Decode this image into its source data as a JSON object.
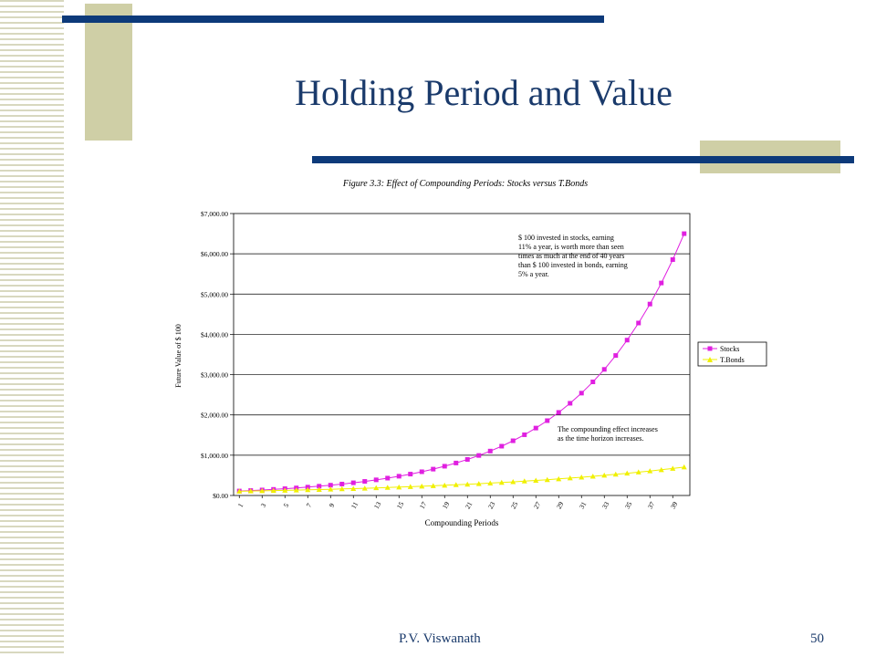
{
  "slide": {
    "title": "Holding Period and Value",
    "footer_author": "P.V. Viswanath",
    "page_number": "50"
  },
  "colors": {
    "title": "#1a3a6b",
    "bar": "#0d3a7a",
    "accent_block": "#cfcfa6",
    "stocks": "#e020e0",
    "bonds": "#f0f000"
  },
  "chart_data": {
    "type": "line",
    "title": "Figure 3.3: Effect of Compounding Periods: Stocks versus T.Bonds",
    "xlabel": "Compounding Periods",
    "ylabel": "Future Value of $ 100",
    "ylim": [
      0,
      7000
    ],
    "yticks": [
      "$0.00",
      "$1,000.00",
      "$2,000.00",
      "$3,000.00",
      "$4,000.00",
      "$5,000.00",
      "$6,000.00",
      "$7,000.00"
    ],
    "x": [
      1,
      2,
      3,
      4,
      5,
      6,
      7,
      8,
      9,
      10,
      11,
      12,
      13,
      14,
      15,
      16,
      17,
      18,
      19,
      20,
      21,
      22,
      23,
      24,
      25,
      26,
      27,
      28,
      29,
      30,
      31,
      32,
      33,
      34,
      35,
      36,
      37,
      38,
      39,
      40
    ],
    "xtick_labels": [
      "1",
      "3",
      "5",
      "7",
      "9",
      "11",
      "13",
      "15",
      "17",
      "19",
      "21",
      "23",
      "25",
      "27",
      "29",
      "31",
      "33",
      "35",
      "37",
      "39"
    ],
    "grid": "horizontal",
    "legend_position": "right",
    "series": [
      {
        "name": "Stocks",
        "marker": "square",
        "values": [
          111,
          123.21,
          136.76,
          151.81,
          168.51,
          187.04,
          207.62,
          230.45,
          255.8,
          283.94,
          315.17,
          349.85,
          388.33,
          431.05,
          478.46,
          531.09,
          589.51,
          654.36,
          726.34,
          806.23,
          894.92,
          993.36,
          1102.63,
          1223.93,
          1358.55,
          1507.99,
          1673.87,
          1858.0,
          2062.38,
          2289.23,
          2541.05,
          2820.56,
          3130.82,
          3475.22,
          3857.49,
          4281.81,
          4752.81,
          5275.62,
          5855.95,
          6500.1
        ]
      },
      {
        "name": "T.Bonds",
        "marker": "triangle",
        "values": [
          105,
          110.25,
          115.76,
          121.55,
          127.63,
          134.01,
          140.71,
          147.75,
          155.13,
          162.89,
          171.03,
          179.59,
          188.56,
          197.99,
          207.89,
          218.29,
          229.2,
          240.66,
          252.7,
          265.33,
          278.6,
          292.53,
          307.15,
          322.51,
          338.64,
          355.57,
          373.35,
          392.01,
          411.61,
          432.19,
          453.8,
          476.49,
          500.32,
          525.33,
          551.6,
          579.18,
          608.14,
          638.55,
          670.48,
          704.0
        ]
      }
    ],
    "annotations": [
      {
        "lines": [
          "$ 100 invested in stocks, earning",
          "11% a year, is worth more than seen",
          "times as much at the end of 40 years",
          "than $ 100 invested in bonds, earning",
          "5% a year."
        ]
      },
      {
        "lines": [
          "The compounding effect increases",
          "as the time horizon increases."
        ]
      }
    ]
  }
}
